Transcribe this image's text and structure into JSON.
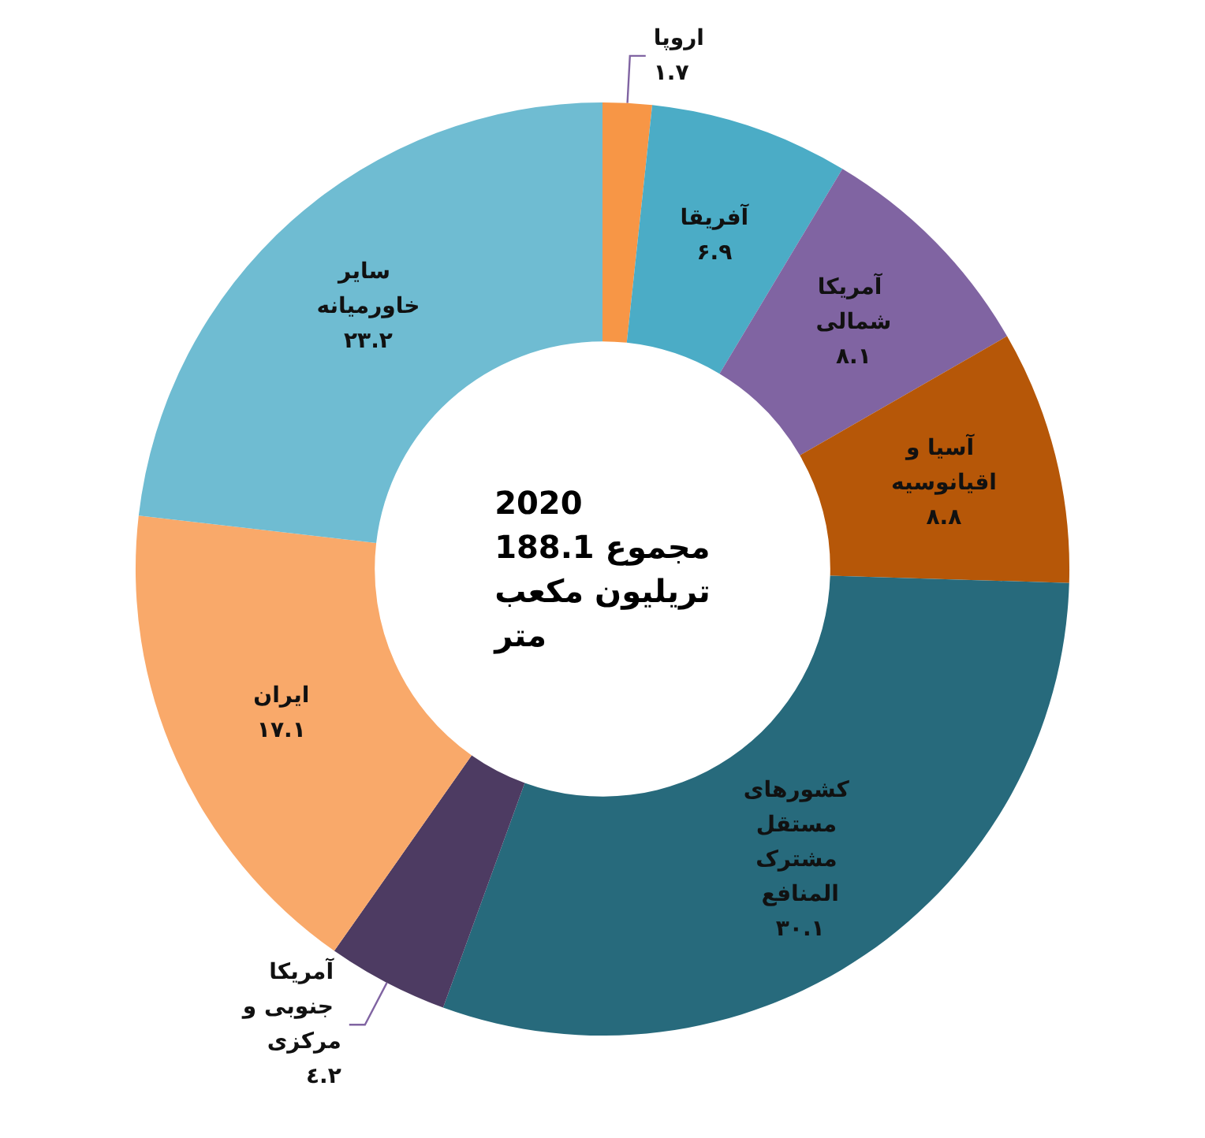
{
  "chart_data": {
    "type": "donut",
    "categories": [
      "اروپا",
      "آفریقا",
      "آمریکا شمالی",
      "آسیا و اقیانوسیه",
      "کشورهای مستقل مشترک المنافع",
      "آمریکا جنوبی و مرکزی",
      "ایران",
      "سایر خاورمیانه"
    ],
    "values": [
      1.7,
      6.9,
      8.1,
      8.8,
      30.1,
      4.2,
      17.1,
      23.2
    ],
    "value_labels": [
      "۱.۷",
      "۶.۹",
      "۸.۱",
      "۸.۸",
      "۳۰.۱",
      "٤.۲",
      "۱۷.۱",
      "۲۳.۲"
    ],
    "colors": [
      "#f79646",
      "#4bacc6",
      "#8064a2",
      "#b65708",
      "#276a7c",
      "#4d3b62",
      "#f9a96a",
      "#6fbcd2"
    ],
    "annotations": [
      "2020\nمجموع 188.1\nتریلیون مکعب\nمتر"
    ],
    "legend": false
  }
}
